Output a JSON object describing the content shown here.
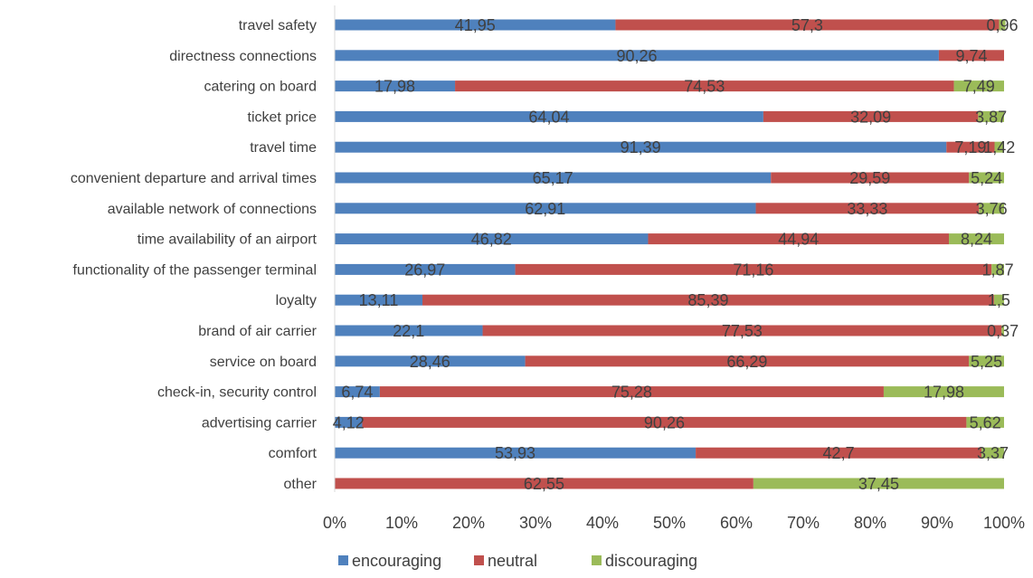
{
  "chart_data": {
    "type": "bar",
    "orientation": "horizontal",
    "stacked": "percent",
    "categories": [
      "travel safety",
      "directness connections",
      "catering on board",
      "ticket price",
      "travel time",
      "convenient departure and arrival times",
      "available network of connections",
      "time availability of an airport",
      "functionality of the passenger terminal",
      "loyalty",
      "brand of  air carrier",
      "service on board",
      "check-in, security control",
      "advertising carrier",
      "comfort",
      "other"
    ],
    "series": [
      {
        "name": "encouraging",
        "color": "#4F81BD",
        "values": [
          41.95,
          90.26,
          17.98,
          64.04,
          91.39,
          65.17,
          62.91,
          46.82,
          26.97,
          13.11,
          22.1,
          28.46,
          6.74,
          4.12,
          53.93,
          null
        ],
        "labels": [
          "41,95",
          "90,26",
          "17,98",
          "64,04",
          "91,39",
          "65,17",
          "62,91",
          "46,82",
          "26,97",
          "13,11",
          "22,1",
          "28,46",
          "6,74",
          "4,12",
          "53,93",
          ""
        ]
      },
      {
        "name": "neutral",
        "color": "#C0504D",
        "values": [
          57.3,
          9.74,
          74.53,
          32.09,
          7.19,
          29.59,
          33.33,
          44.94,
          71.16,
          85.39,
          77.53,
          66.29,
          75.28,
          90.26,
          42.7,
          62.55
        ],
        "labels": [
          "57,3",
          "9,74",
          "74,53",
          "32,09",
          "7,19",
          "29,59",
          "33,33",
          "44,94",
          "71,16",
          "85,39",
          "77,53",
          "66,29",
          "75,28",
          "90,26",
          "42,7",
          "62,55"
        ]
      },
      {
        "name": "discouraging",
        "color": "#9BBB59",
        "values": [
          0.96,
          null,
          7.49,
          3.87,
          1.42,
          5.24,
          3.76,
          8.24,
          1.87,
          1.5,
          0.37,
          5.25,
          17.98,
          5.62,
          3.37,
          37.45
        ],
        "labels": [
          "0,96",
          "",
          "7,49",
          "3,87",
          "1,42",
          "5,24",
          "3,76",
          "8,24",
          "1,87",
          "1,5",
          "0,37",
          "5,25",
          "17,98",
          "5,62",
          "3,37",
          "37,45"
        ]
      }
    ],
    "xticks": [
      "0%",
      "10%",
      "20%",
      "30%",
      "40%",
      "50%",
      "60%",
      "70%",
      "80%",
      "90%",
      "100%"
    ],
    "xlim": [
      0,
      100
    ],
    "grid": false,
    "legend": "bottom",
    "title": "",
    "xlabel": "",
    "ylabel": ""
  }
}
